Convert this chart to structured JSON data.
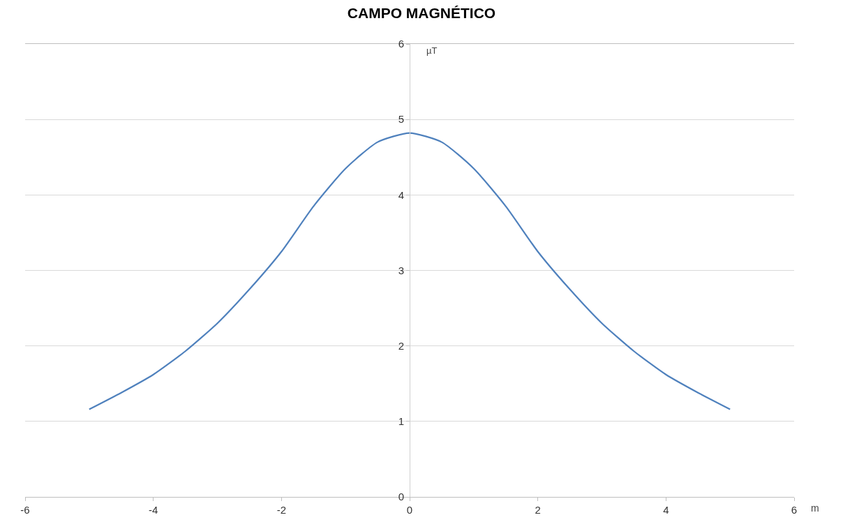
{
  "chart_data": {
    "type": "line",
    "title": "CAMPO MAGNÉTICO",
    "xlabel": "m",
    "ylabel": "µT",
    "x": [
      -5,
      -4.5,
      -4,
      -3.5,
      -3,
      -2.5,
      -2,
      -1.5,
      -1,
      -0.5,
      0,
      0.5,
      1,
      1.5,
      2,
      2.5,
      3,
      3.5,
      4,
      4.5,
      5
    ],
    "series": [
      {
        "color": "#4f81bd",
        "values": [
          1.16,
          1.38,
          1.62,
          1.93,
          2.3,
          2.75,
          3.25,
          3.85,
          4.35,
          4.7,
          4.82,
          4.7,
          4.35,
          3.85,
          3.25,
          2.75,
          2.3,
          1.93,
          1.62,
          1.38,
          1.16
        ]
      }
    ],
    "xlim": [
      -6,
      6
    ],
    "xticks": [
      -6,
      -4,
      -2,
      0,
      2,
      4,
      6
    ],
    "ylim": [
      0,
      6
    ],
    "yticks": [
      0,
      1,
      2,
      3,
      4,
      5,
      6
    ],
    "grid": "y",
    "marker": "none",
    "line_style": "solid"
  }
}
